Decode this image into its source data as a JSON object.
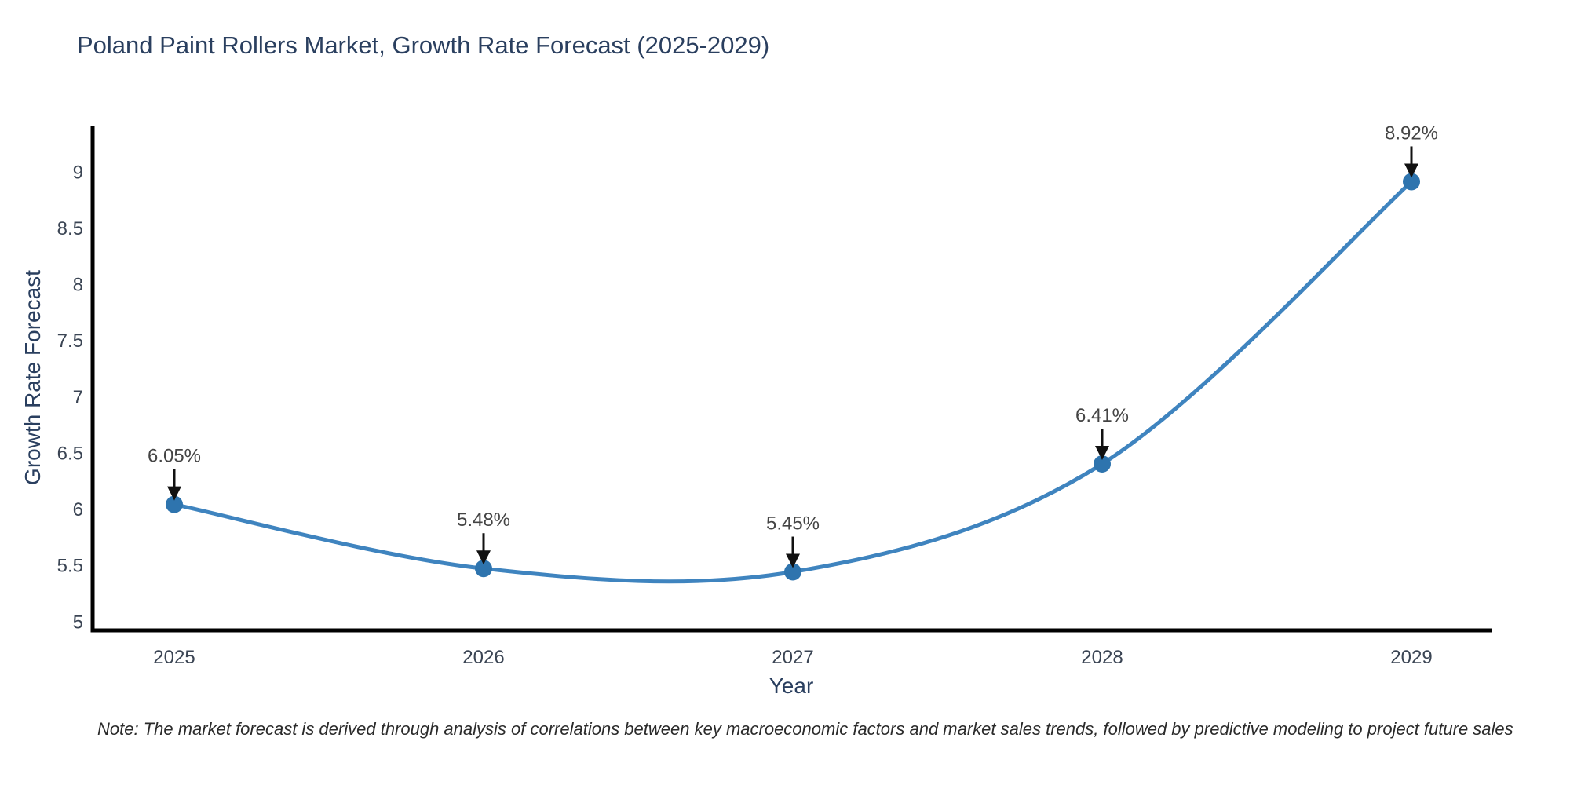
{
  "title": "Poland Paint Rollers Market, Growth Rate Forecast (2025-2029)",
  "note": "Note: The market forecast is derived through analysis of correlations between key macroeconomic factors and market sales trends, followed by predictive modeling to project future sales",
  "axes": {
    "x_label": "Year",
    "y_label": "Growth Rate Forecast"
  },
  "colors": {
    "line": "#3f84bf",
    "marker": "#2e74ae",
    "axis": "#000000",
    "title_text": "#2a3f5f",
    "tick_text": "#3b4554",
    "annotation_text": "#444444",
    "arrow": "#111111",
    "background": "#ffffff"
  },
  "chart_data": {
    "type": "line",
    "x": [
      2025,
      2026,
      2027,
      2028,
      2029
    ],
    "values": [
      6.05,
      5.48,
      5.45,
      6.41,
      8.92
    ],
    "point_labels": [
      "6.05%",
      "5.48%",
      "5.45%",
      "6.41%",
      "8.92%"
    ],
    "series_name": "Growth Rate Forecast",
    "title": "Poland Paint Rollers Market, Growth Rate Forecast (2025-2029)",
    "xlabel": "Year",
    "ylabel": "Growth Rate Forecast",
    "xticks": [
      "2025",
      "2026",
      "2027",
      "2028",
      "2029"
    ],
    "yticks": [
      5,
      5.5,
      6,
      6.5,
      7,
      7.5,
      8,
      8.5,
      9
    ],
    "ylim": [
      4.95,
      9.45
    ],
    "xlim": [
      2024.73,
      2029.26
    ],
    "grid": false,
    "legend": false,
    "line_shape": "spline",
    "markers": true,
    "annotations": "percentage value with black down-arrow above each data point"
  }
}
